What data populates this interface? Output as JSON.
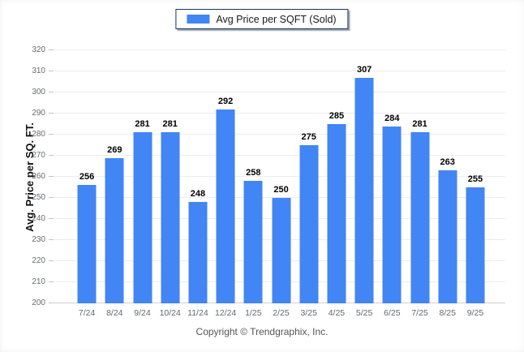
{
  "legend": {
    "label": "Avg Price per SQFT (Sold)",
    "swatch_color": "#4285f4"
  },
  "footer": {
    "copyright": "Copyright © Trendgraphix, Inc."
  },
  "colors": {
    "bar": "#4285f4",
    "gridline": "#ededed",
    "baseline": "#d0d0d0",
    "value_label": "#000000",
    "tick_label": "#666b70",
    "x_label": "#60696f",
    "legend_border": "#16365c"
  },
  "chart_data": {
    "type": "bar",
    "title": "",
    "categories": [
      "7/24",
      "8/24",
      "9/24",
      "10/24",
      "11/24",
      "12/24",
      "1/25",
      "2/25",
      "3/25",
      "4/25",
      "5/25",
      "6/25",
      "7/25",
      "8/25",
      "9/25"
    ],
    "values": [
      256,
      269,
      281,
      281,
      248,
      292,
      258,
      250,
      275,
      285,
      307,
      284,
      281,
      263,
      255
    ],
    "series_name": "Avg Price per SQFT (Sold)",
    "xlabel": "",
    "ylabel": "Avg. Price per SQ. FT.",
    "ylim": [
      200,
      320
    ],
    "ytick_step": 10,
    "grid": true,
    "bar_labels": true,
    "legend_position": "top-center",
    "bar_color": "#4285f4"
  }
}
